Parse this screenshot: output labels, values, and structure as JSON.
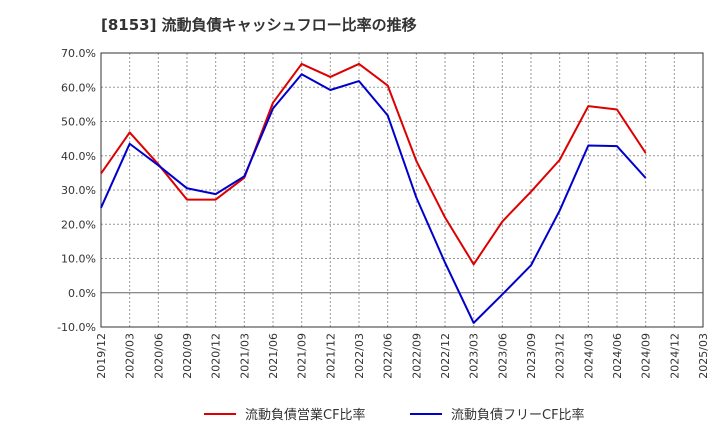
{
  "chart_data": {
    "type": "line",
    "title": "[8153]  流動負債キャッシュフロー比率の推移",
    "x": [
      "2019/12",
      "2020/03",
      "2020/06",
      "2020/09",
      "2020/12",
      "2021/03",
      "2021/06",
      "2021/09",
      "2021/12",
      "2022/03",
      "2022/06",
      "2022/09",
      "2022/12",
      "2023/03",
      "2023/06",
      "2023/09",
      "2023/12",
      "2024/03",
      "2024/06",
      "2024/09",
      "2024/12",
      "2025/03"
    ],
    "y_ticks": [
      "70.0%",
      "60.0%",
      "50.0%",
      "40.0%",
      "30.0%",
      "20.0%",
      "10.0%",
      "0.0%",
      "-10.0%"
    ],
    "ylim": [
      -10,
      70
    ],
    "grid": true,
    "legend_position": "bottom",
    "series": [
      {
        "name": "流動負債営業CF比率",
        "color": "#dd0000",
        "values": [
          34.8,
          46.8,
          37.5,
          27.2,
          27.2,
          33.6,
          55.5,
          66.8,
          63.0,
          66.8,
          60.5,
          38.5,
          22.0,
          8.3,
          20.8,
          29.5,
          38.8,
          54.5,
          53.5,
          40.8,
          null,
          null
        ]
      },
      {
        "name": "流動負債フリーCF比率",
        "color": "#0000cc",
        "values": [
          24.8,
          43.5,
          37.2,
          30.5,
          28.8,
          34.0,
          53.8,
          63.8,
          59.2,
          61.8,
          51.8,
          27.8,
          8.8,
          -8.8,
          -0.5,
          8.0,
          24.0,
          43.0,
          42.8,
          33.5,
          null,
          null
        ]
      }
    ]
  }
}
